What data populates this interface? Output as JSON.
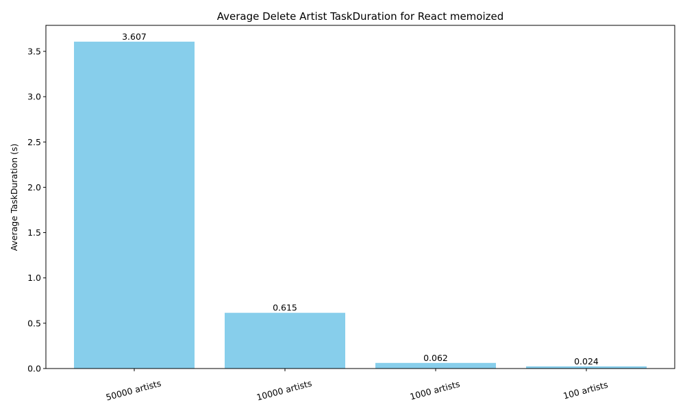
{
  "chart_data": {
    "type": "bar",
    "title": "Average Delete Artist TaskDuration for React memoized",
    "xlabel": "",
    "ylabel": "Average TaskDuration (s)",
    "categories": [
      "50000 artists",
      "10000 artists",
      "1000 artists",
      "100 artists"
    ],
    "values": [
      3.607,
      0.615,
      0.062,
      0.024
    ],
    "value_labels": [
      "3.607",
      "0.615",
      "0.062",
      "0.024"
    ],
    "ylim": [
      0,
      3.787
    ],
    "yticks": [
      0.0,
      0.5,
      1.0,
      1.5,
      2.0,
      2.5,
      3.0,
      3.5
    ],
    "ytick_labels": [
      "0.0",
      "0.5",
      "1.0",
      "1.5",
      "2.0",
      "2.5",
      "3.0",
      "3.5"
    ],
    "bar_color": "#87CEEB",
    "grid": false,
    "legend": "none"
  }
}
